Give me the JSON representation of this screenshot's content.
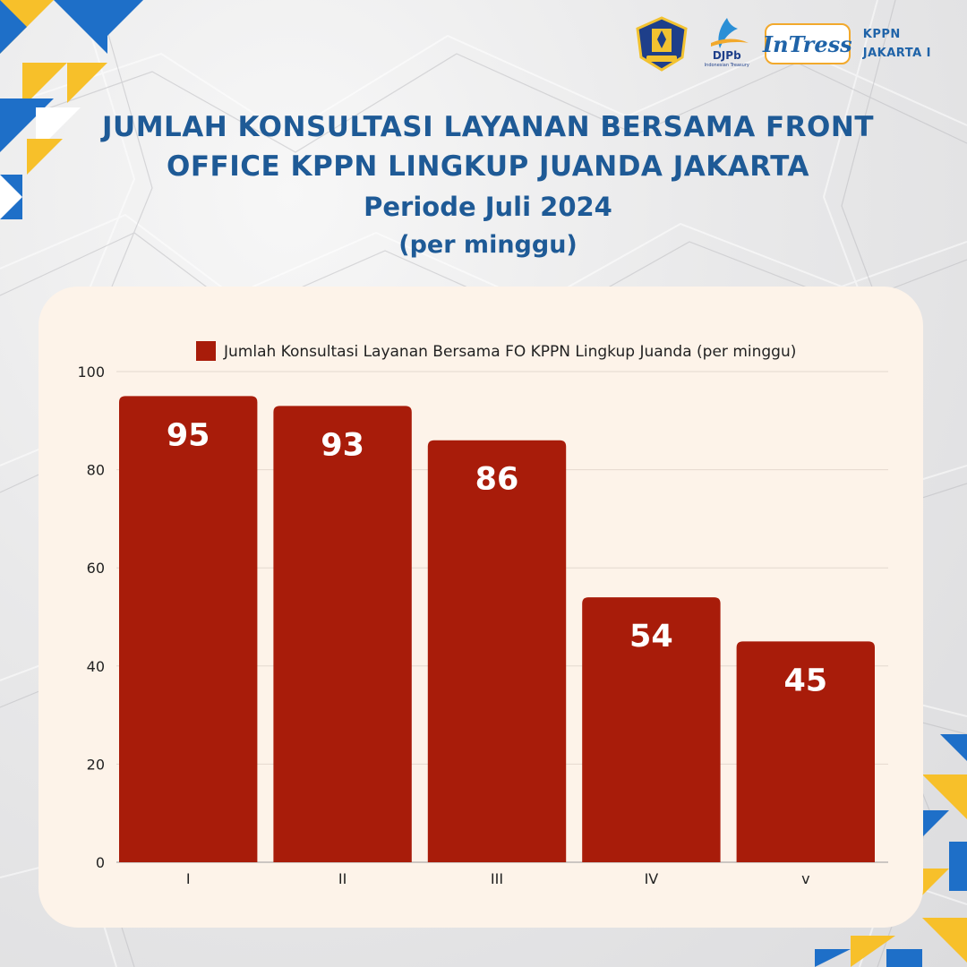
{
  "header": {
    "title_line_1": "JUMLAH KONSULTASI LAYANAN BERSAMA FRONT",
    "title_line_2": "OFFICE KPPN LINGKUP JUANDA JAKARTA",
    "subtitle": "Periode Juli 2024",
    "unit": "(per minggu)"
  },
  "logos": {
    "kemenkeu_icon": "kemenkeu-emblem-icon",
    "djpb_text": "DJPb",
    "djpb_tagline": "Indonesian Treasury",
    "intress_text": "InTress",
    "kppn_line_1": "KPPN",
    "kppn_line_2": "JAKARTA I"
  },
  "colors": {
    "bar": "#a81c0a",
    "title": "#1e5a96",
    "card": "#fdf3e9",
    "accent_yellow": "#f7c02a",
    "accent_blue": "#1e6fc8"
  },
  "chart_data": {
    "type": "bar",
    "title": "",
    "categories": [
      "I",
      "II",
      "III",
      "IV",
      "v"
    ],
    "series": [
      {
        "name": "Jumlah Konsultasi Layanan Bersama FO KPPN Lingkup Juanda (per minggu)",
        "values": [
          95,
          93,
          86,
          54,
          45
        ]
      }
    ],
    "data_labels": [
      "95",
      "93",
      "86",
      "54",
      "45"
    ],
    "xlabel": "",
    "ylabel": "",
    "ylim": [
      0,
      100
    ],
    "yticks": [
      0,
      20,
      40,
      60,
      80,
      100
    ],
    "grid": true,
    "legend": "top-center"
  }
}
